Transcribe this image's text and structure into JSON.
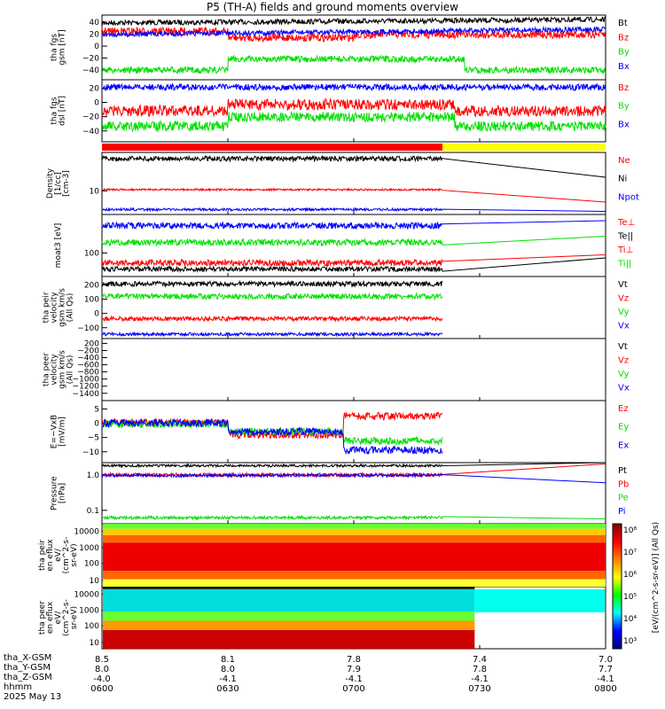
{
  "title": "P5 (TH-A) fields and ground moments overview",
  "date": "2025 May 13",
  "colors": {
    "black": "#000000",
    "red": "#ff0000",
    "green": "#00e000",
    "blue": "#0000ff",
    "yellow": "#ffff00"
  },
  "ephemeris": {
    "labels": [
      "tha_X-GSM",
      "tha_Y-GSM",
      "tha_Z-GSM",
      "hhmm"
    ],
    "columns": [
      {
        "x": "8.5",
        "y": "8.0",
        "z": "-4.0",
        "t": "0600"
      },
      {
        "x": "8.1",
        "y": "8.0",
        "z": "-4.1",
        "t": "0630"
      },
      {
        "x": "7.8",
        "y": "7.9",
        "z": "-4.1",
        "t": "0700"
      },
      {
        "x": "7.4",
        "y": "7.8",
        "z": "-4.1",
        "t": "0730"
      },
      {
        "x": "7.0",
        "y": "7.7",
        "z": "-4.1",
        "t": "0800"
      }
    ]
  },
  "chart_data": [
    {
      "type": "line",
      "ylabel": "tha fgs gsm [nT]",
      "yticks": [
        "40",
        "20",
        "0",
        "−20",
        "−40"
      ],
      "ylim": [
        -45,
        55
      ],
      "series": [
        {
          "name": "Bt",
          "color": "black"
        },
        {
          "name": "Bz",
          "color": "red"
        },
        {
          "name": "By",
          "color": "green"
        },
        {
          "name": "Bx",
          "color": "blue"
        }
      ]
    },
    {
      "type": "line",
      "ylabel": "tha fgs dsl [nT]",
      "yticks": [
        "20",
        "0",
        "−20",
        "−40"
      ],
      "ylim": [
        -50,
        30
      ],
      "series": [
        {
          "name": "Bz",
          "color": "red"
        },
        {
          "name": "By",
          "color": "green"
        },
        {
          "name": "Bx",
          "color": "blue"
        }
      ]
    },
    {
      "type": "bar",
      "note": "mode flag",
      "segments": [
        {
          "from": "0600",
          "to": "0730",
          "color": "red"
        },
        {
          "from": "0730",
          "to": "0800",
          "color": "yellow"
        }
      ]
    },
    {
      "type": "line",
      "ylabel": "Density [1/cc] [cm-3]",
      "yticks": [
        "10"
      ],
      "scale": "log",
      "series": [
        {
          "name": "Ne",
          "color": "red"
        },
        {
          "name": "Ni",
          "color": "black"
        },
        {
          "name": "Npot",
          "color": "blue"
        }
      ]
    },
    {
      "type": "line",
      "ylabel": "moat3 [eV]",
      "yticks": [
        "100"
      ],
      "scale": "log",
      "series": [
        {
          "name": "Te⊥",
          "color": "red"
        },
        {
          "name": "Te||",
          "color": "black"
        },
        {
          "name": "Ti⊥",
          "color": "red"
        },
        {
          "name": "Ti||",
          "color": "green"
        }
      ]
    },
    {
      "type": "line",
      "ylabel": "tha peir velocity gsm km/s (All Qs)",
      "yticks": [
        "200",
        "100",
        "0",
        "−100"
      ],
      "ylim": [
        -120,
        210
      ],
      "series": [
        {
          "name": "Vt",
          "color": "black"
        },
        {
          "name": "Vz",
          "color": "red"
        },
        {
          "name": "Vy",
          "color": "green"
        },
        {
          "name": "Vx",
          "color": "blue"
        }
      ]
    },
    {
      "type": "line",
      "ylabel": "tha peer velocity gsm km/s (All Qs)",
      "yticks": [
        "200",
        "−200",
        "−400",
        "−600",
        "−800",
        "−1000",
        "−1200",
        "−1400"
      ],
      "ylim": [
        -1500,
        300
      ],
      "series": [
        {
          "name": "Vt",
          "color": "black"
        },
        {
          "name": "Vz",
          "color": "red"
        },
        {
          "name": "Vy",
          "color": "green"
        },
        {
          "name": "Vx",
          "color": "blue"
        }
      ]
    },
    {
      "type": "line",
      "ylabel": "E=−VxB [mV/m]",
      "yticks": [
        "5",
        "0",
        "−5",
        "−10"
      ],
      "ylim": [
        -11,
        7
      ],
      "series": [
        {
          "name": "Ez",
          "color": "red"
        },
        {
          "name": "Ey",
          "color": "green"
        },
        {
          "name": "Ex",
          "color": "blue"
        }
      ]
    },
    {
      "type": "line",
      "ylabel": "Pressure [nPa]",
      "yticks": [
        "1.0",
        "0.1"
      ],
      "scale": "log",
      "series": [
        {
          "name": "Pt",
          "color": "black"
        },
        {
          "name": "Pb",
          "color": "red"
        },
        {
          "name": "Pe",
          "color": "green"
        },
        {
          "name": "Pi",
          "color": "blue"
        }
      ]
    },
    {
      "type": "heatmap",
      "ylabel": "tha peir en eflux eV/ (cm^2-s- sr-eV)",
      "yticks": [
        "10000",
        "1000",
        "100",
        "10"
      ]
    },
    {
      "type": "heatmap",
      "ylabel": "tha peer en eflux eV/ (cm^2-s- sr-eV)",
      "yticks": [
        "10000",
        "1000",
        "100",
        "10"
      ]
    }
  ],
  "colorbar": {
    "label": "[eV/(cm^2-s-sr-eV)] (All Qs)",
    "ticks": [
      "10⁸",
      "10⁷",
      "10⁶",
      "10⁵",
      "10⁴",
      "10³"
    ]
  }
}
